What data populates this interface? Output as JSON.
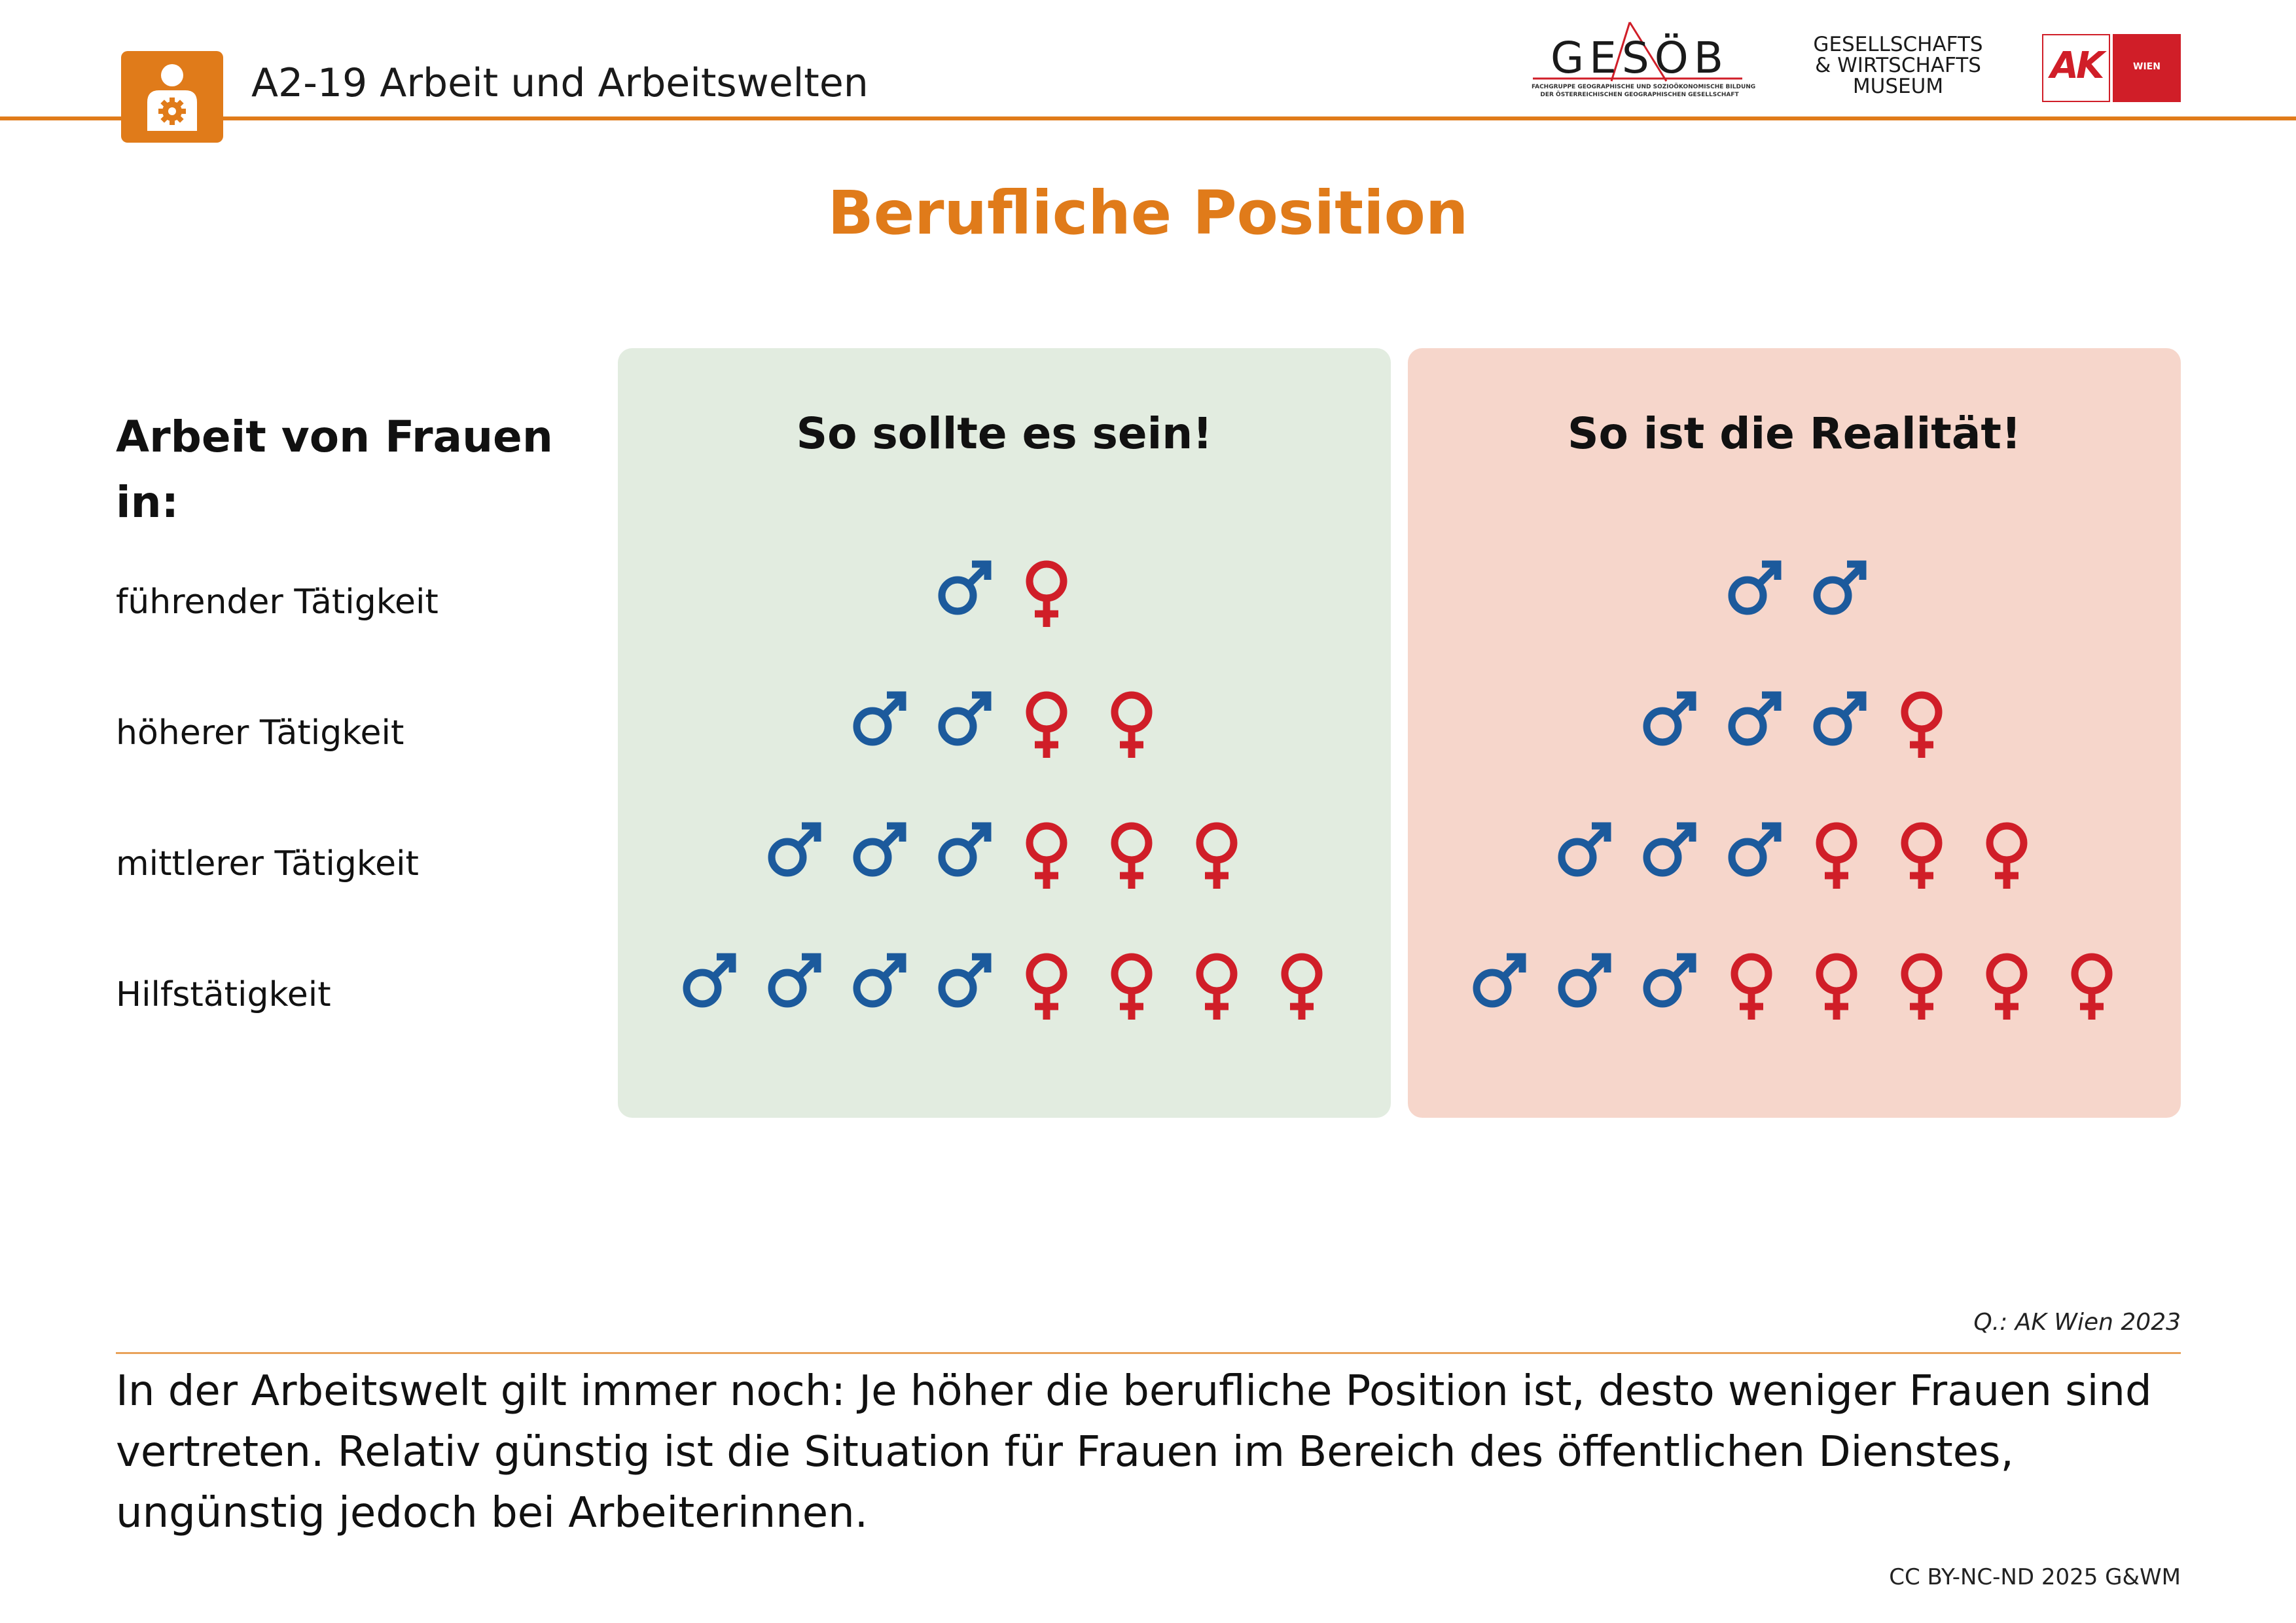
{
  "header": {
    "title": "A2-19 Arbeit und Arbeitswelten",
    "icon": "worker-gear-icon",
    "accent_color": "#e07b1a"
  },
  "logos": {
    "gesoeb": {
      "word": "GESÖB",
      "sub_line1": "FACHGRUPPE GEOGRAPHISCHE UND SOZIOÖKONOMISCHE BILDUNG",
      "sub_line2": "DER ÖSTERREICHISCHEN GEOGRAPHISCHEN GESELLSCHAFT"
    },
    "museum": {
      "line1": "GESELLSCHAFTS",
      "line2": "& WIRTSCHAFTS",
      "line3": "MUSEUM"
    },
    "ak": {
      "mark": "AK",
      "city": "WIEN",
      "color": "#d01e28"
    }
  },
  "title": "Berufliche Position",
  "row_heading": "Arbeit von Frauen in:",
  "rows": [
    {
      "label": "führender Tätigkeit"
    },
    {
      "label": "höherer Tätigkeit"
    },
    {
      "label": "mittlerer Tätigkeit"
    },
    {
      "label": "Hilfstätigkeit"
    }
  ],
  "panels": {
    "ideal": {
      "title": "So sollte es sein!",
      "background": "#e2ece0",
      "counts": [
        {
          "male": 1,
          "female": 1
        },
        {
          "male": 2,
          "female": 2
        },
        {
          "male": 3,
          "female": 3
        },
        {
          "male": 4,
          "female": 4
        }
      ]
    },
    "real": {
      "title": "So ist die Realität!",
      "background": "#f6d6cb",
      "counts": [
        {
          "male": 2,
          "female": 0
        },
        {
          "male": 3,
          "female": 1
        },
        {
          "male": 3,
          "female": 3
        },
        {
          "male": 3,
          "female": 5
        }
      ]
    }
  },
  "symbols": {
    "male_icon": "male-symbol-icon",
    "female_icon": "female-symbol-icon",
    "male_color": "#1c5a9c",
    "female_color": "#d01e28"
  },
  "source": "Q.: AK Wien 2023",
  "body_text": "In der Arbeitswelt gilt immer noch: Je höher die berufliche Position ist, desto weniger Frauen sind vertreten. Relativ günstig ist die Situation für Frauen im Bereich des öffentlichen Dienstes, ungünstig jedoch bei Arbeiterinnen.",
  "license": "CC BY-NC-ND 2025 G&WM"
}
